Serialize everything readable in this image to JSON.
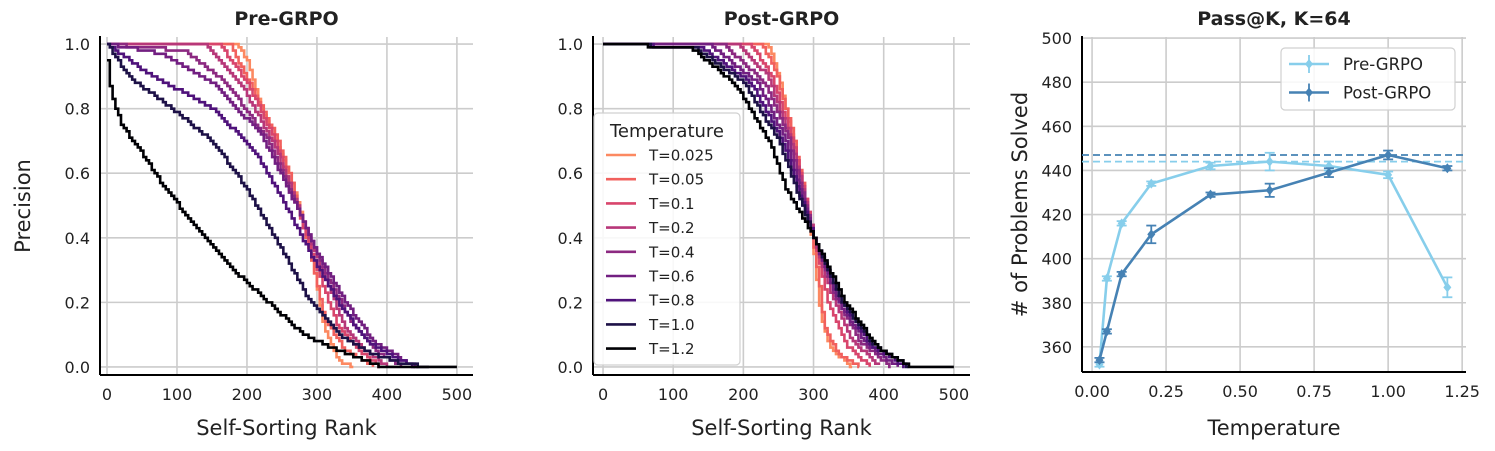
{
  "chart_data": [
    {
      "type": "line",
      "title": "Pre-GRPO",
      "xlabel": "Self-Sorting Rank",
      "ylabel": "Precision",
      "xlim": [
        -10,
        523
      ],
      "ylim": [
        -0.025,
        1.022
      ],
      "xticks": [
        0,
        100,
        200,
        300,
        400,
        500
      ],
      "yticks": [
        0.0,
        0.2,
        0.4,
        0.6,
        0.8,
        1.0
      ],
      "ytick_labels": [
        "0.0",
        "0.2",
        "0.4",
        "0.6",
        "0.8",
        "1.0"
      ],
      "grid": true,
      "step": true,
      "series": [
        {
          "name": "T=0.025",
          "color": "#fc8961",
          "points": [
            [
              0,
              1
            ],
            [
              185,
              1
            ],
            [
              200,
              0.95
            ],
            [
              220,
              0.8
            ],
            [
              240,
              0.7
            ],
            [
              260,
              0.6
            ],
            [
              280,
              0.45
            ],
            [
              295,
              0.3
            ],
            [
              310,
              0.12
            ],
            [
              330,
              0.02
            ],
            [
              352,
              0
            ]
          ]
        },
        {
          "name": "T=0.05",
          "color": "#f1605d",
          "points": [
            [
              0,
              1
            ],
            [
              175,
              1
            ],
            [
              210,
              0.85
            ],
            [
              240,
              0.72
            ],
            [
              260,
              0.6
            ],
            [
              290,
              0.35
            ],
            [
              310,
              0.15
            ],
            [
              340,
              0.05
            ],
            [
              380,
              0
            ]
          ]
        },
        {
          "name": "T=0.1",
          "color": "#d8456c",
          "points": [
            [
              0,
              1
            ],
            [
              160,
              1
            ],
            [
              200,
              0.88
            ],
            [
              240,
              0.7
            ],
            [
              270,
              0.5
            ],
            [
              300,
              0.3
            ],
            [
              330,
              0.12
            ],
            [
              360,
              0.05
            ],
            [
              390,
              0
            ]
          ]
        },
        {
          "name": "T=0.2",
          "color": "#b73779",
          "points": [
            [
              0,
              1
            ],
            [
              140,
              1
            ],
            [
              190,
              0.88
            ],
            [
              240,
              0.68
            ],
            [
              280,
              0.45
            ],
            [
              310,
              0.28
            ],
            [
              340,
              0.12
            ],
            [
              370,
              0.05
            ],
            [
              400,
              0
            ]
          ]
        },
        {
          "name": "T=0.4",
          "color": "#8c2981",
          "points": [
            [
              0,
              1
            ],
            [
              110,
              0.98
            ],
            [
              170,
              0.88
            ],
            [
              230,
              0.7
            ],
            [
              270,
              0.5
            ],
            [
              310,
              0.3
            ],
            [
              350,
              0.13
            ],
            [
              390,
              0.04
            ],
            [
              420,
              0
            ]
          ]
        },
        {
          "name": "T=0.6",
          "color": "#721f81",
          "points": [
            [
              0,
              1
            ],
            [
              80,
              0.97
            ],
            [
              150,
              0.88
            ],
            [
              220,
              0.72
            ],
            [
              265,
              0.52
            ],
            [
              300,
              0.35
            ],
            [
              340,
              0.2
            ],
            [
              380,
              0.08
            ],
            [
              430,
              0.01
            ],
            [
              445,
              0
            ]
          ]
        },
        {
          "name": "T=0.8",
          "color": "#4f127b",
          "points": [
            [
              0,
              1
            ],
            [
              50,
              0.92
            ],
            [
              150,
              0.8
            ],
            [
              210,
              0.67
            ],
            [
              250,
              0.52
            ],
            [
              290,
              0.35
            ],
            [
              330,
              0.2
            ],
            [
              370,
              0.08
            ],
            [
              420,
              0.02
            ],
            [
              440,
              0
            ]
          ]
        },
        {
          "name": "T=1.0",
          "color": "#1d1147",
          "points": [
            [
              0,
              1
            ],
            [
              30,
              0.9
            ],
            [
              80,
              0.82
            ],
            [
              150,
              0.7
            ],
            [
              200,
              0.55
            ],
            [
              250,
              0.36
            ],
            [
              290,
              0.2
            ],
            [
              330,
              0.1
            ],
            [
              380,
              0.04
            ],
            [
              420,
              0.01
            ],
            [
              460,
              0
            ]
          ]
        },
        {
          "name": "T=1.2",
          "color": "#000004",
          "points": [
            [
              0,
              0.95
            ],
            [
              5,
              0.85
            ],
            [
              20,
              0.75
            ],
            [
              50,
              0.66
            ],
            [
              80,
              0.56
            ],
            [
              120,
              0.45
            ],
            [
              180,
              0.3
            ],
            [
              230,
              0.2
            ],
            [
              280,
              0.1
            ],
            [
              330,
              0.05
            ],
            [
              380,
              0.01
            ],
            [
              390,
              0
            ],
            [
              500,
              0
            ]
          ]
        }
      ]
    },
    {
      "type": "line",
      "title": "Post-GRPO",
      "xlabel": "Self-Sorting Rank",
      "ylabel": "",
      "xlim": [
        -14.3,
        523
      ],
      "ylim": [
        -0.025,
        1.022
      ],
      "xticks": [
        0,
        100,
        200,
        300,
        400,
        500
      ],
      "yticks": [
        0.0,
        0.2,
        0.4,
        0.6,
        0.8,
        1.0
      ],
      "ytick_labels": [
        "0.0",
        "0.2",
        "0.4",
        "0.6",
        "0.8",
        "1.0"
      ],
      "grid": true,
      "step": true,
      "legend": {
        "title": "Temperature",
        "placement": "center-left"
      },
      "series": [
        {
          "name": "T=0.025",
          "color": "#fc8961",
          "points": [
            [
              0,
              1
            ],
            [
              235,
              1
            ],
            [
              250,
              0.9
            ],
            [
              270,
              0.7
            ],
            [
              290,
              0.5
            ],
            [
              300,
              0.35
            ],
            [
              310,
              0.15
            ],
            [
              325,
              0.05
            ],
            [
              355,
              0
            ]
          ]
        },
        {
          "name": "T=0.05",
          "color": "#f1605d",
          "points": [
            [
              0,
              1
            ],
            [
              225,
              1
            ],
            [
              245,
              0.92
            ],
            [
              270,
              0.72
            ],
            [
              290,
              0.5
            ],
            [
              305,
              0.3
            ],
            [
              315,
              0.12
            ],
            [
              335,
              0.04
            ],
            [
              365,
              0
            ]
          ]
        },
        {
          "name": "T=0.1",
          "color": "#d8456c",
          "points": [
            [
              0,
              1
            ],
            [
              210,
              1
            ],
            [
              240,
              0.9
            ],
            [
              270,
              0.7
            ],
            [
              300,
              0.4
            ],
            [
              320,
              0.2
            ],
            [
              345,
              0.07
            ],
            [
              380,
              0
            ]
          ]
        },
        {
          "name": "T=0.2",
          "color": "#b73779",
          "points": [
            [
              0,
              1
            ],
            [
              190,
              1
            ],
            [
              235,
              0.9
            ],
            [
              270,
              0.68
            ],
            [
              300,
              0.4
            ],
            [
              325,
              0.22
            ],
            [
              355,
              0.08
            ],
            [
              395,
              0
            ]
          ]
        },
        {
          "name": "T=0.4",
          "color": "#8c2981",
          "points": [
            [
              0,
              1
            ],
            [
              170,
              1
            ],
            [
              230,
              0.88
            ],
            [
              265,
              0.7
            ],
            [
              300,
              0.4
            ],
            [
              330,
              0.22
            ],
            [
              365,
              0.08
            ],
            [
              410,
              0
            ]
          ]
        },
        {
          "name": "T=0.6",
          "color": "#721f81",
          "points": [
            [
              0,
              1
            ],
            [
              150,
              1
            ],
            [
              220,
              0.88
            ],
            [
              260,
              0.7
            ],
            [
              300,
              0.4
            ],
            [
              335,
              0.2
            ],
            [
              375,
              0.07
            ],
            [
              420,
              0
            ]
          ]
        },
        {
          "name": "T=0.8",
          "color": "#4f127b",
          "points": [
            [
              0,
              1
            ],
            [
              140,
              0.99
            ],
            [
              210,
              0.88
            ],
            [
              255,
              0.7
            ],
            [
              300,
              0.4
            ],
            [
              340,
              0.2
            ],
            [
              380,
              0.07
            ],
            [
              430,
              0
            ]
          ]
        },
        {
          "name": "T=1.0",
          "color": "#1d1147",
          "points": [
            [
              0,
              1
            ],
            [
              130,
              0.99
            ],
            [
              200,
              0.88
            ],
            [
              250,
              0.7
            ],
            [
              300,
              0.4
            ],
            [
              340,
              0.2
            ],
            [
              385,
              0.07
            ],
            [
              435,
              0
            ]
          ]
        },
        {
          "name": "T=1.2",
          "color": "#000004",
          "points": [
            [
              0,
              1
            ],
            [
              125,
              0.99
            ],
            [
              190,
              0.87
            ],
            [
              240,
              0.68
            ],
            [
              260,
              0.55
            ],
            [
              300,
              0.4
            ],
            [
              345,
              0.2
            ],
            [
              390,
              0.06
            ],
            [
              440,
              0
            ],
            [
              500,
              0
            ]
          ]
        }
      ]
    },
    {
      "type": "line",
      "title": "Pass@K, K=64",
      "xlabel": "Temperature",
      "ylabel": "# of Problems Solved",
      "xlim": [
        -0.034,
        1.263
      ],
      "ylim": [
        348.6,
        500.5
      ],
      "xticks": [
        0,
        0.25,
        0.5,
        0.75,
        1.0,
        1.25
      ],
      "xtick_labels": [
        "0.00",
        "0.25",
        "0.50",
        "0.75",
        "1.00",
        "1.25"
      ],
      "yticks": [
        360,
        380,
        400,
        420,
        440,
        460,
        480,
        500
      ],
      "grid": true,
      "legend": {
        "placement": "upper-right"
      },
      "x": [
        0.025,
        0.05,
        0.1,
        0.2,
        0.4,
        0.6,
        0.8,
        1.0,
        1.2
      ],
      "series": [
        {
          "name": "Pre-GRPO",
          "color": "#87ceeb",
          "values": [
            352,
            391,
            416,
            434,
            442,
            444,
            442,
            438,
            387
          ],
          "errors": [
            1,
            1,
            1,
            1,
            1.5,
            4,
            2,
            1.5,
            4.5
          ],
          "hline": 444
        },
        {
          "name": "Post-GRPO",
          "color": "#4682b4",
          "values": [
            354,
            367,
            393,
            411,
            429,
            431,
            439,
            447,
            441
          ],
          "errors": [
            1,
            1,
            1,
            4,
            1,
            3,
            2,
            2,
            1
          ],
          "hline": 447
        }
      ]
    }
  ]
}
